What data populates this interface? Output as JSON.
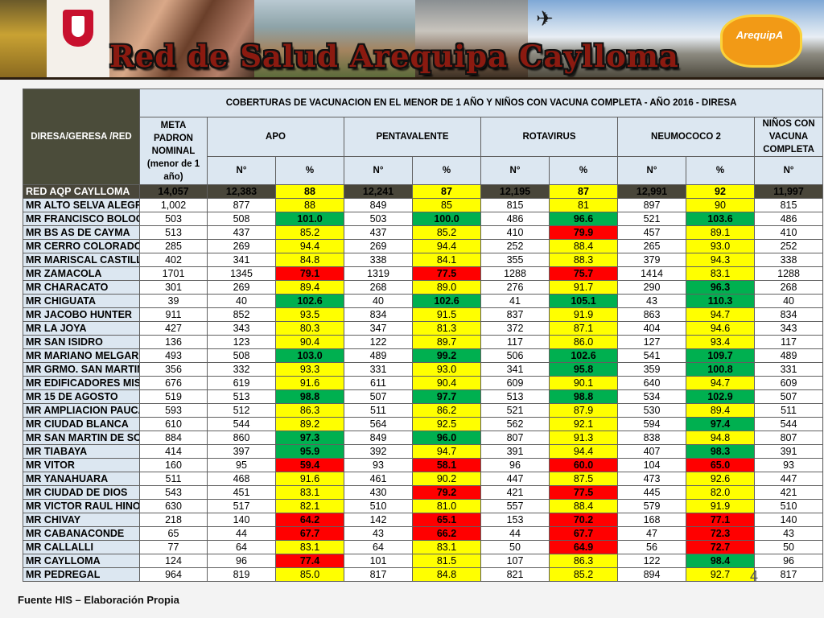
{
  "banner": {
    "title": "Red de Salud Arequipa Caylloma",
    "logo_text": "ArequipA"
  },
  "table": {
    "corner_label": "DIRESA/GERESA /RED",
    "title": "COBERTURAS DE VACUNACION EN EL MENOR DE 1 AÑO Y NIÑOS CON VACUNA COMPLETA - AÑO 2016 - DIRESA",
    "meta_header": "META PADRON NOMINAL (menor de 1 año)",
    "groups": [
      "APO",
      "PENTAVALENTE",
      "ROTAVIRUS",
      "NEUMOCOCO 2"
    ],
    "last_header": "NIÑOS CON VACUNA COMPLETA",
    "n_label": "N°",
    "pct_label": "%",
    "total": {
      "name": "RED AQP CAYLLOMA",
      "cells": [
        "14,057",
        "12,383",
        "88",
        "12,241",
        "87",
        "12,195",
        "87",
        "12,991",
        "92",
        "11,997"
      ]
    },
    "rows": [
      {
        "name": "MR ALTO SELVA ALEGRE",
        "cells": [
          "1,002",
          "877",
          "88",
          "849",
          "85",
          "815",
          "81",
          "897",
          "90",
          "815"
        ],
        "colors": [
          "y",
          "y",
          "y",
          "y"
        ]
      },
      {
        "name": "MR FRANCISCO BOLOGNESI",
        "cells": [
          "503",
          "508",
          "101.0",
          "503",
          "100.0",
          "486",
          "96.6",
          "521",
          "103.6",
          "486"
        ],
        "colors": [
          "g",
          "g",
          "g",
          "g"
        ]
      },
      {
        "name": "MR BS AS DE CAYMA",
        "cells": [
          "513",
          "437",
          "85.2",
          "437",
          "85.2",
          "410",
          "79.9",
          "457",
          "89.1",
          "410"
        ],
        "colors": [
          "y",
          "y",
          "r",
          "y"
        ]
      },
      {
        "name": "MR CERRO COLORADO",
        "cells": [
          "285",
          "269",
          "94.4",
          "269",
          "94.4",
          "252",
          "88.4",
          "265",
          "93.0",
          "252"
        ],
        "colors": [
          "y",
          "y",
          "y",
          "y"
        ]
      },
      {
        "name": "MR MARISCAL CASTILLA",
        "cells": [
          "402",
          "341",
          "84.8",
          "338",
          "84.1",
          "355",
          "88.3",
          "379",
          "94.3",
          "338"
        ],
        "colors": [
          "y",
          "y",
          "y",
          "y"
        ]
      },
      {
        "name": "MR ZAMACOLA",
        "cells": [
          "1701",
          "1345",
          "79.1",
          "1319",
          "77.5",
          "1288",
          "75.7",
          "1414",
          "83.1",
          "1288"
        ],
        "colors": [
          "r",
          "r",
          "r",
          "y"
        ]
      },
      {
        "name": "MR CHARACATO",
        "cells": [
          "301",
          "269",
          "89.4",
          "268",
          "89.0",
          "276",
          "91.7",
          "290",
          "96.3",
          "268"
        ],
        "colors": [
          "y",
          "y",
          "y",
          "g"
        ]
      },
      {
        "name": "MR CHIGUATA",
        "cells": [
          "39",
          "40",
          "102.6",
          "40",
          "102.6",
          "41",
          "105.1",
          "43",
          "110.3",
          "40"
        ],
        "colors": [
          "g",
          "g",
          "g",
          "g"
        ]
      },
      {
        "name": "MR JACOBO HUNTER",
        "cells": [
          "911",
          "852",
          "93.5",
          "834",
          "91.5",
          "837",
          "91.9",
          "863",
          "94.7",
          "834"
        ],
        "colors": [
          "y",
          "y",
          "y",
          "y"
        ]
      },
      {
        "name": "MR LA JOYA",
        "cells": [
          "427",
          "343",
          "80.3",
          "347",
          "81.3",
          "372",
          "87.1",
          "404",
          "94.6",
          "343"
        ],
        "colors": [
          "y",
          "y",
          "y",
          "y"
        ]
      },
      {
        "name": "MR SAN ISIDRO",
        "cells": [
          "136",
          "123",
          "90.4",
          "122",
          "89.7",
          "117",
          "86.0",
          "127",
          "93.4",
          "117"
        ],
        "colors": [
          "y",
          "y",
          "y",
          "y"
        ]
      },
      {
        "name": "MR MARIANO MELGAR",
        "cells": [
          "493",
          "508",
          "103.0",
          "489",
          "99.2",
          "506",
          "102.6",
          "541",
          "109.7",
          "489"
        ],
        "colors": [
          "g",
          "g",
          "g",
          "g"
        ]
      },
      {
        "name": "MR GRMO. SAN MARTIN",
        "cells": [
          "356",
          "332",
          "93.3",
          "331",
          "93.0",
          "341",
          "95.8",
          "359",
          "100.8",
          "331"
        ],
        "colors": [
          "y",
          "y",
          "g",
          "g"
        ]
      },
      {
        "name": "MR EDIFICADORES MISTI",
        "cells": [
          "676",
          "619",
          "91.6",
          "611",
          "90.4",
          "609",
          "90.1",
          "640",
          "94.7",
          "609"
        ],
        "colors": [
          "y",
          "y",
          "y",
          "y"
        ]
      },
      {
        "name": "MR 15 DE AGOSTO",
        "cells": [
          "519",
          "513",
          "98.8",
          "507",
          "97.7",
          "513",
          "98.8",
          "534",
          "102.9",
          "507"
        ],
        "colors": [
          "g",
          "g",
          "g",
          "g"
        ]
      },
      {
        "name": "MR AMPLIACION PAUCARPATA",
        "cells": [
          "593",
          "512",
          "86.3",
          "511",
          "86.2",
          "521",
          "87.9",
          "530",
          "89.4",
          "511"
        ],
        "colors": [
          "y",
          "y",
          "y",
          "y"
        ]
      },
      {
        "name": "MR CIUDAD BLANCA",
        "cells": [
          "610",
          "544",
          "89.2",
          "564",
          "92.5",
          "562",
          "92.1",
          "594",
          "97.4",
          "544"
        ],
        "colors": [
          "y",
          "y",
          "y",
          "g"
        ]
      },
      {
        "name": "MR SAN MARTIN DE SOCABAYA",
        "cells": [
          "884",
          "860",
          "97.3",
          "849",
          "96.0",
          "807",
          "91.3",
          "838",
          "94.8",
          "807"
        ],
        "colors": [
          "g",
          "g",
          "y",
          "y"
        ]
      },
      {
        "name": "MR TIABAYA",
        "cells": [
          "414",
          "397",
          "95.9",
          "392",
          "94.7",
          "391",
          "94.4",
          "407",
          "98.3",
          "391"
        ],
        "colors": [
          "g",
          "y",
          "y",
          "g"
        ]
      },
      {
        "name": "MR VITOR",
        "cells": [
          "160",
          "95",
          "59.4",
          "93",
          "58.1",
          "96",
          "60.0",
          "104",
          "65.0",
          "93"
        ],
        "colors": [
          "r",
          "r",
          "r",
          "r"
        ]
      },
      {
        "name": "MR YANAHUARA",
        "cells": [
          "511",
          "468",
          "91.6",
          "461",
          "90.2",
          "447",
          "87.5",
          "473",
          "92.6",
          "447"
        ],
        "colors": [
          "y",
          "y",
          "y",
          "y"
        ]
      },
      {
        "name": "MR CIUDAD DE DIOS",
        "cells": [
          "543",
          "451",
          "83.1",
          "430",
          "79.2",
          "421",
          "77.5",
          "445",
          "82.0",
          "421"
        ],
        "colors": [
          "y",
          "r",
          "r",
          "y"
        ]
      },
      {
        "name": "MR VICTOR RAUL HINOJOSA",
        "cells": [
          "630",
          "517",
          "82.1",
          "510",
          "81.0",
          "557",
          "88.4",
          "579",
          "91.9",
          "510"
        ],
        "colors": [
          "y",
          "y",
          "y",
          "y"
        ]
      },
      {
        "name": "MR CHIVAY",
        "cells": [
          "218",
          "140",
          "64.2",
          "142",
          "65.1",
          "153",
          "70.2",
          "168",
          "77.1",
          "140"
        ],
        "colors": [
          "r",
          "r",
          "r",
          "r"
        ]
      },
      {
        "name": "MR CABANACONDE",
        "cells": [
          "65",
          "44",
          "67.7",
          "43",
          "66.2",
          "44",
          "67.7",
          "47",
          "72.3",
          "43"
        ],
        "colors": [
          "r",
          "r",
          "r",
          "r"
        ]
      },
      {
        "name": "MR CALLALLI",
        "cells": [
          "77",
          "64",
          "83.1",
          "64",
          "83.1",
          "50",
          "64.9",
          "56",
          "72.7",
          "50"
        ],
        "colors": [
          "y",
          "y",
          "r",
          "r"
        ]
      },
      {
        "name": "MR CAYLLOMA",
        "cells": [
          "124",
          "96",
          "77.4",
          "101",
          "81.5",
          "107",
          "86.3",
          "122",
          "98.4",
          "96"
        ],
        "colors": [
          "r",
          "y",
          "y",
          "g"
        ]
      },
      {
        "name": "MR PEDREGAL",
        "cells": [
          "964",
          "819",
          "85.0",
          "817",
          "84.8",
          "821",
          "85.2",
          "894",
          "92.7",
          "817"
        ],
        "colors": [
          "y",
          "y",
          "y",
          "y"
        ]
      }
    ]
  },
  "slide_number": "4",
  "footer": "Fuente HIS – Elaboración Propia"
}
